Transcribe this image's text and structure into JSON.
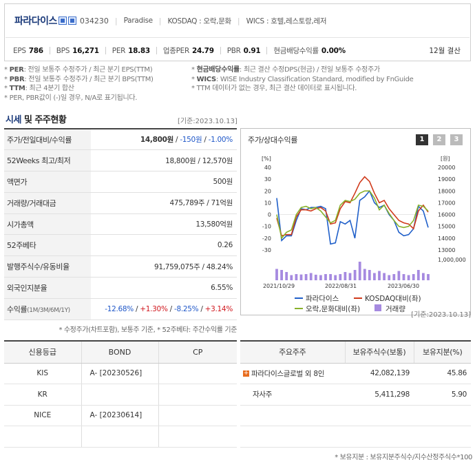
{
  "company": {
    "name": "파라다이스",
    "code": "034230",
    "english": "Paradise",
    "market": "KOSDAQ : 오락,문화",
    "wics": "WICS : 호텔,레스토랑,레저"
  },
  "metrics": [
    {
      "label": "EPS",
      "value": "786"
    },
    {
      "label": "BPS",
      "value": "16,271"
    },
    {
      "label": "PER",
      "value": "18.83"
    },
    {
      "label": "업종PER",
      "value": "24.79"
    },
    {
      "label": "PBR",
      "value": "0.91"
    },
    {
      "label": "현금배당수익률",
      "value": "0.00%"
    }
  ],
  "settlement": "12월 결산",
  "notes_left": [
    {
      "key": "PER",
      "text": ": 전일 보통주 수정주가 / 최근 분기 EPS(TTM)"
    },
    {
      "key": "PBR",
      "text": ": 전일 보통주 수정주가 / 최근 분기 BPS(TTM)"
    },
    {
      "key": "TTM",
      "text": ": 최근 4분기 합산"
    },
    {
      "key": "",
      "text": "PER, PBR값이 (-)일 경우, N/A로 표기됩니다."
    }
  ],
  "notes_right": [
    {
      "key": "현금배당수익률",
      "text": ": 최근 결산 수정DPS(현금) / 전일 보통주 수정주가"
    },
    {
      "key": "WICS",
      "text": ": WISE Industry Classification Standard, modified by FnGuide"
    },
    {
      "key": "",
      "text": "TTM 데이터가 없는 경우, 최근 결산 데이터로 표시됩니다."
    }
  ],
  "section": {
    "title_a": "시세",
    "title_b": " 및 주주현황",
    "basis": "[기준:2023.10.13]"
  },
  "price": {
    "row1_label": "주가/전일대비/수익률",
    "price": "14,800원",
    "change": "-150원",
    "rate": "-1.00%",
    "rows": [
      {
        "label": "52Weeks 최고/최저",
        "value": "18,800원 / 12,570원"
      },
      {
        "label": "액면가",
        "value": "500원"
      },
      {
        "label": "거래량/거래대금",
        "value": "475,789주 / 71억원"
      },
      {
        "label": "시가총액",
        "value": "13,580억원"
      },
      {
        "label": "52주베타",
        "value": "0.26"
      },
      {
        "label": "발행주식수/유동비율",
        "value": "91,759,075주 / 48.24%"
      },
      {
        "label": "외국인지분율",
        "value": "6.55%"
      }
    ],
    "return_label": "수익률",
    "return_periods": "(1M/3M/6M/1Y)",
    "returns": [
      "-12.68%",
      "+1.30%",
      "-8.25%",
      "+3.14%"
    ],
    "note": "* 수정주가(차트포함), 보통주 기준, * 52주베타: 주간수익률 기준"
  },
  "chart_panel": {
    "title": "주가/상대수익률",
    "pages": [
      "1",
      "2",
      "3"
    ]
  },
  "chart_data": {
    "type": "line",
    "left_unit": "[%]",
    "right_unit": "[원]",
    "left_ylim": [
      -30,
      40
    ],
    "left_ticks": [
      "40",
      "30",
      "20",
      "10",
      "0",
      "-10",
      "-20",
      "-30"
    ],
    "right_ylim": [
      13000,
      20000
    ],
    "right_ticks": [
      "20000",
      "19000",
      "18000",
      "17000",
      "16000",
      "15000",
      "14000",
      "13000"
    ],
    "volume_tick": "1,000,000",
    "x_labels": [
      "2021/10/29",
      "2022/08/31",
      "2023/06/30"
    ],
    "series": [
      {
        "name": "파라다이스",
        "color": "#1f5fc9",
        "values": [
          14,
          -22,
          -18,
          -18,
          -5,
          5,
          4,
          6,
          6,
          7,
          5,
          -25,
          -24,
          -6,
          -8,
          -5,
          -20,
          12,
          15,
          20,
          10,
          6,
          8,
          0,
          -5,
          -15,
          -18,
          -17,
          -12,
          7,
          3,
          -11
        ]
      },
      {
        "name": "KOSDAQ대비(좌)",
        "color": "#d03a1b",
        "values": [
          -3,
          -18,
          -17,
          -17,
          -2,
          4,
          4,
          3,
          5,
          6,
          3,
          -8,
          -7,
          5,
          11,
          10,
          18,
          27,
          32,
          28,
          18,
          10,
          12,
          5,
          0,
          -5,
          -7,
          -8,
          -12,
          3,
          8,
          2
        ]
      },
      {
        "name": "오락,문화대비(좌)",
        "color": "#88b12a",
        "values": [
          0,
          -20,
          -15,
          -13,
          0,
          6,
          7,
          5,
          6,
          3,
          -2,
          -7,
          -5,
          8,
          12,
          11,
          13,
          18,
          20,
          20,
          14,
          4,
          8,
          1,
          -5,
          -10,
          -11,
          -10,
          -5,
          8,
          7,
          3
        ]
      }
    ],
    "volume_series": {
      "name": "거래량",
      "color": "#a68ae0",
      "values": [
        0.55,
        0.5,
        0.4,
        0.25,
        0.3,
        0.28,
        0.3,
        0.35,
        0.27,
        0.25,
        0.3,
        0.3,
        0.25,
        0.3,
        0.4,
        0.35,
        0.5,
        0.9,
        0.55,
        0.5,
        0.35,
        0.45,
        0.35,
        0.25,
        0.3,
        0.45,
        0.3,
        0.25,
        0.3,
        0.5,
        0.35,
        0.3
      ]
    },
    "legend": "bottom",
    "grid": false
  },
  "basis_right": "[기준:2023.10.13]",
  "credit": {
    "headers": [
      "신용등급",
      "BOND",
      "CP"
    ],
    "rows": [
      {
        "agency": "KIS",
        "bond": "A-   [20230526]",
        "cp": ""
      },
      {
        "agency": "KR",
        "bond": "",
        "cp": ""
      },
      {
        "agency": "NICE",
        "bond": "A-   [20230614]",
        "cp": ""
      },
      {
        "agency": "",
        "bond": "",
        "cp": ""
      }
    ]
  },
  "holders": {
    "headers": [
      "주요주주",
      "보유주식수(보통)",
      "보유지분(%)"
    ],
    "rows": [
      {
        "name": "파라다이스글로벌 외 8인",
        "shares": "42,082,139",
        "pct": "45.86",
        "expand": true
      },
      {
        "name": "자사주",
        "shares": "5,411,298",
        "pct": "5.90",
        "expand": false
      },
      {
        "name": "",
        "shares": "",
        "pct": "",
        "expand": false
      },
      {
        "name": "",
        "shares": "",
        "pct": "",
        "expand": false
      }
    ],
    "note": "* 보유지분 : 보유지분주식수/지수산정주식수*100"
  }
}
